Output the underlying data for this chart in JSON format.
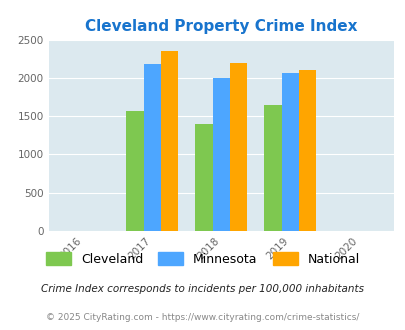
{
  "title": "Cleveland Property Crime Index",
  "title_color": "#1874cd",
  "years": [
    2016,
    2017,
    2018,
    2019,
    2020
  ],
  "bar_years": [
    2017,
    2018,
    2019
  ],
  "cleveland": [
    1570,
    1400,
    1640
  ],
  "minnesota": [
    2180,
    2000,
    2070
  ],
  "national": [
    2350,
    2200,
    2100
  ],
  "colors": {
    "cleveland": "#7ec850",
    "minnesota": "#4da6ff",
    "national": "#ffa500"
  },
  "ylim": [
    0,
    2500
  ],
  "yticks": [
    0,
    500,
    1000,
    1500,
    2000,
    2500
  ],
  "background_color": "#dce9ef",
  "legend_labels": [
    "Cleveland",
    "Minnesota",
    "National"
  ],
  "footnote1": "Crime Index corresponds to incidents per 100,000 inhabitants",
  "footnote2": "© 2025 CityRating.com - https://www.cityrating.com/crime-statistics/",
  "bar_width": 0.25
}
